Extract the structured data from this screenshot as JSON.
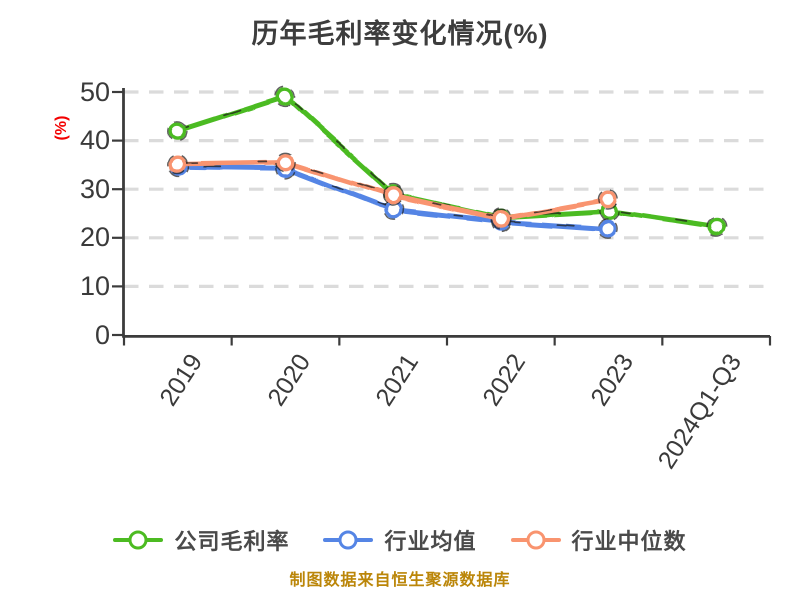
{
  "colors": {
    "background": "#FFFFFF",
    "title": "#3D3D3D",
    "axis": "#3C3C3C",
    "tick_label": "#3A3A3A",
    "grid": "#DBDBDB",
    "y_axis_unit": "#F30000",
    "legend_text": "#4A4A4A",
    "footer": "#BB8609",
    "ink_sketch": "#1E1E1E"
  },
  "chart_data": {
    "type": "line",
    "style": "hand-drawn-xkcd, white circle markers, dashed gray horizontal gridlines",
    "title": "历年毛利率变化情况(%)",
    "ylabel": "(%)",
    "xlabel": "",
    "categories": [
      "2019",
      "2020",
      "2021",
      "2022",
      "2023",
      "2024Q1-Q3"
    ],
    "series": [
      {
        "name": "公司毛利率",
        "color": "#4CBB22",
        "marker": "circle-white-fill",
        "values": [
          41.9,
          49.0,
          29.0,
          24.1,
          25.4,
          22.1
        ]
      },
      {
        "name": "行业均值",
        "color": "#5585E5",
        "marker": "circle-white-fill",
        "values": [
          34.6,
          34.3,
          25.8,
          23.4,
          21.9,
          null
        ]
      },
      {
        "name": "行业中位数",
        "color": "#F9946F",
        "marker": "circle-white-fill",
        "values": [
          35.2,
          35.6,
          28.7,
          23.9,
          27.8,
          null
        ]
      }
    ],
    "ylim": [
      0,
      50
    ],
    "yticks": [
      0,
      10,
      20,
      30,
      40,
      50
    ],
    "grid": "horizontal-dashed",
    "legend_position": "bottom",
    "source_note": "制图数据来自恒生聚源数据库"
  }
}
